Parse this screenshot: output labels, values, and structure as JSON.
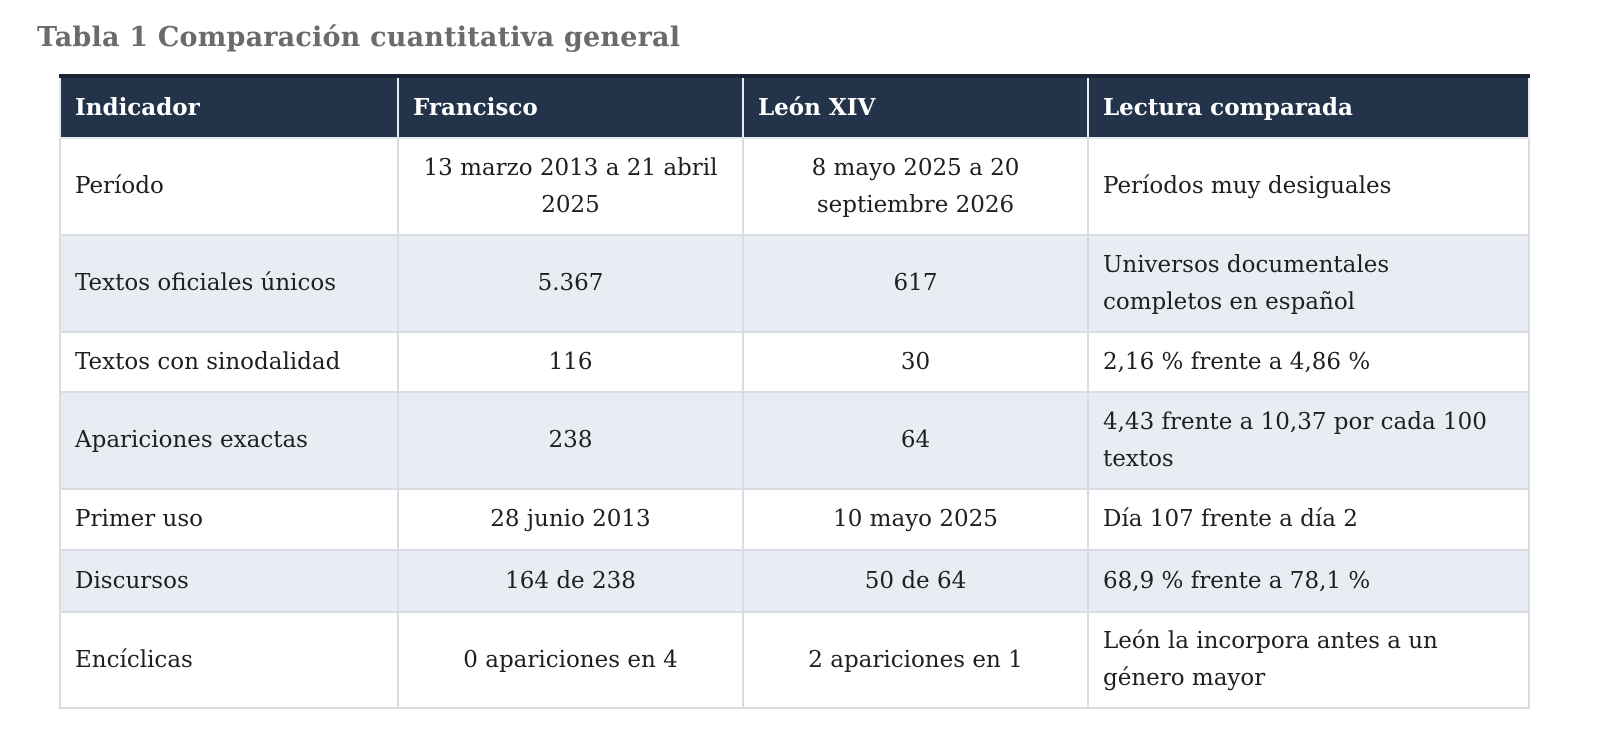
{
  "caption": "Tabla 1 Comparación cuantitativa general",
  "table": {
    "headers": [
      "Indicador",
      "Francisco",
      "León XIV",
      "Lectura comparada"
    ],
    "rows": [
      [
        "Período",
        "13 marzo 2013 a 21 abril 2025",
        "8 mayo 2025 a 20 septiembre 2026",
        "Períodos muy desiguales"
      ],
      [
        "Textos oficiales únicos",
        "5.367",
        "617",
        "Universos documentales completos en español"
      ],
      [
        "Textos con sinodalidad",
        "116",
        "30",
        "2,16 % frente a 4,86 %"
      ],
      [
        "Apariciones exactas",
        "238",
        "64",
        "4,43 frente a 10,37 por cada 100 textos"
      ],
      [
        "Primer uso",
        "28 junio 2013",
        "10 mayo 2025",
        "Día 107 frente a día 2"
      ],
      [
        "Discursos",
        "164 de 238",
        "50 de 64",
        "68,9 % frente a 78,1 %"
      ],
      [
        "Encíclicas",
        "0 apariciones en 4",
        "2 apariciones en 1",
        "León la incorpora antes a un género mayor"
      ]
    ]
  },
  "colors": {
    "header_bg": "#22334a",
    "row_alt_bg": "#e8edf4",
    "caption_text": "#6b6b6b"
  }
}
